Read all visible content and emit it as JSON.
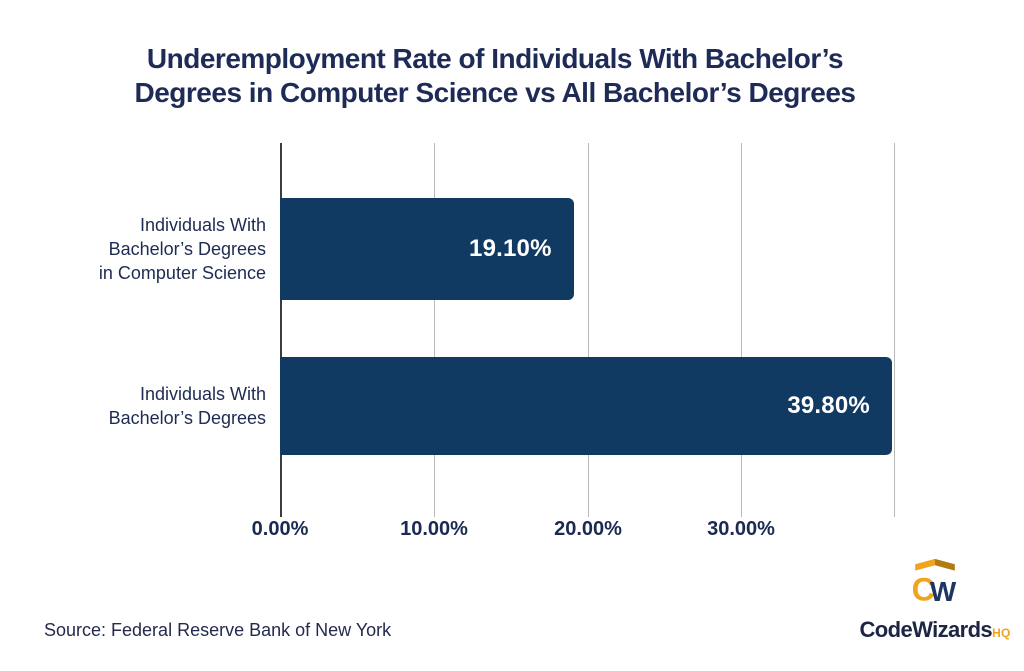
{
  "title": {
    "line1": "Underemployment Rate of Individuals With Bachelor’s",
    "line2": "Degrees in Computer Science vs All Bachelor’s Degrees"
  },
  "chart_data": {
    "type": "bar",
    "orientation": "horizontal",
    "title": "Underemployment Rate of Individuals With Bachelor’s Degrees in Computer Science vs All Bachelor’s Degrees",
    "categories": [
      "Individuals With Bachelor’s Degrees in Computer Science",
      "Individuals With Bachelor’s Degrees"
    ],
    "values": [
      19.1,
      39.8
    ],
    "value_labels": [
      "19.10%",
      "39.80%"
    ],
    "x_tick_labels": [
      "0.00%",
      "10.00%",
      "20.00%",
      "30.00%"
    ],
    "x_tick_values": [
      0,
      10,
      20,
      30
    ],
    "xlim": [
      0,
      40
    ],
    "grid": "vertical gridlines at 0%, 10%, 20%, 30%, 40%",
    "legend": "none",
    "bar_color": "#113a63",
    "value_label_color": "#ffffff",
    "axis_label_color": "#1b2a52"
  },
  "bars": [
    {
      "lines": [
        "Individuals With",
        "Bachelor’s Degrees",
        "in Computer Science"
      ],
      "value_label": "19.10%"
    },
    {
      "lines": [
        "Individuals With",
        "Bachelor’s Degrees"
      ],
      "value_label": "39.80%"
    }
  ],
  "axis": {
    "ticks": [
      "0.00%",
      "10.00%",
      "20.00%",
      "30.00%"
    ]
  },
  "source": "Source: Federal Reserve Bank of New York",
  "logo": {
    "brand": "CodeWizards",
    "suffix": "HQ",
    "monogram_left": "C",
    "monogram_right": "W",
    "gold": "#f0a41e",
    "gold_dark": "#b07c10",
    "navy": "#1f3660",
    "text_navy": "#1b2644"
  }
}
